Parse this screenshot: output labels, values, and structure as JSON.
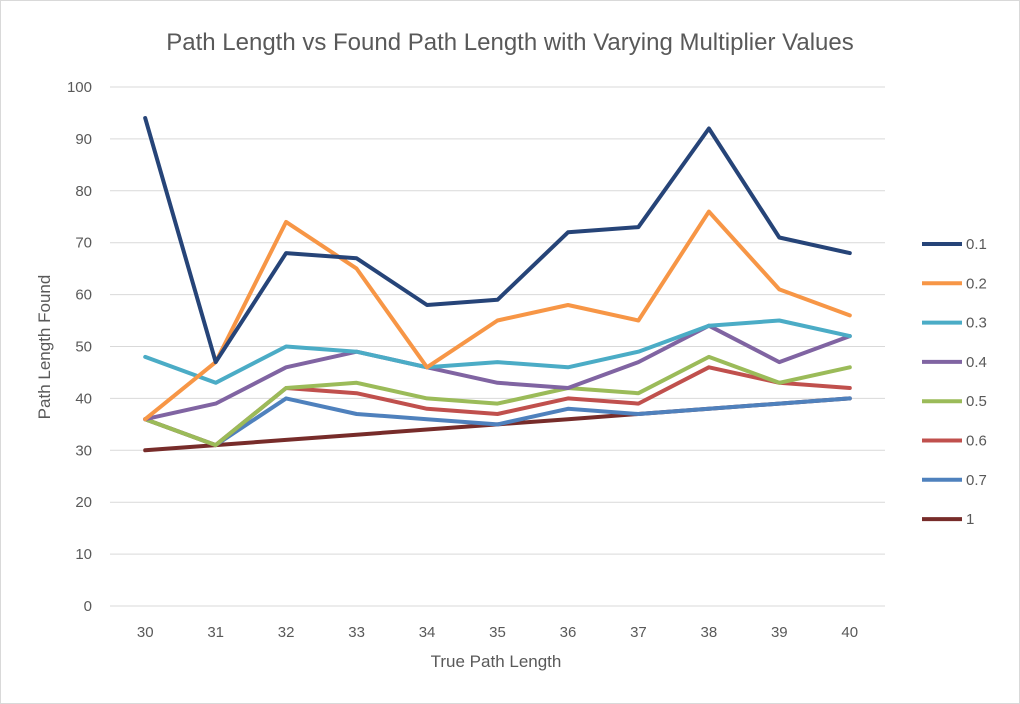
{
  "chart_data": {
    "type": "line",
    "title": "Path Length vs Found Path Length with Varying Multiplier Values",
    "xlabel": "True Path Length",
    "ylabel": "Path Length Found",
    "x": [
      30,
      31,
      32,
      33,
      34,
      35,
      36,
      37,
      38,
      39,
      40
    ],
    "ylim": [
      0,
      100
    ],
    "yticks": [
      0,
      10,
      20,
      30,
      40,
      50,
      60,
      70,
      80,
      90,
      100
    ],
    "grid": true,
    "legend_position": "right",
    "series": [
      {
        "name": "0.1",
        "color": "#264478",
        "values": [
          94,
          47,
          68,
          67,
          58,
          59,
          72,
          73,
          92,
          71,
          68
        ]
      },
      {
        "name": "0.2",
        "color": "#F79646",
        "values": [
          36,
          47,
          74,
          65,
          46,
          55,
          58,
          55,
          76,
          61,
          56
        ]
      },
      {
        "name": "0.3",
        "color": "#4BACC6",
        "values": [
          48,
          43,
          50,
          49,
          46,
          47,
          46,
          49,
          54,
          55,
          52
        ]
      },
      {
        "name": "0.4",
        "color": "#8064A2",
        "values": [
          36,
          39,
          46,
          49,
          46,
          43,
          42,
          47,
          54,
          47,
          52
        ]
      },
      {
        "name": "0.5",
        "color": "#9BBB59",
        "values": [
          36,
          31,
          42,
          43,
          40,
          39,
          42,
          41,
          48,
          43,
          46
        ]
      },
      {
        "name": "0.6",
        "color": "#C0504D",
        "values": [
          36,
          31,
          42,
          41,
          38,
          37,
          40,
          39,
          46,
          43,
          42
        ]
      },
      {
        "name": "0.7",
        "color": "#4F81BD",
        "values": [
          36,
          31,
          40,
          37,
          36,
          35,
          38,
          37,
          38,
          39,
          40
        ]
      },
      {
        "name": "1",
        "color": "#772C2A",
        "values": [
          30,
          31,
          32,
          33,
          34,
          35,
          36,
          37,
          38,
          39,
          40
        ]
      }
    ]
  }
}
